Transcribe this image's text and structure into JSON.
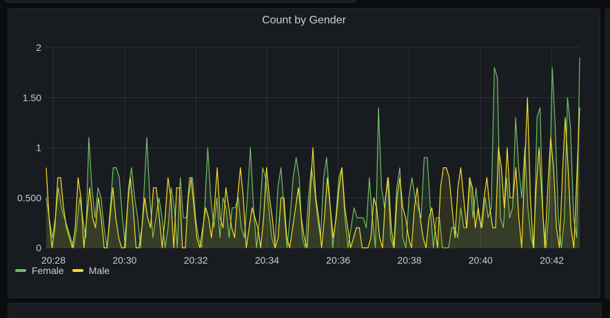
{
  "panel": {
    "title": "Count by Gender"
  },
  "legend": [
    {
      "label": "Female",
      "color": "#73bf69"
    },
    {
      "label": "Male",
      "color": "#fade2a"
    }
  ],
  "chart_data": {
    "type": "area",
    "title": "Count by Gender",
    "xlabel": "",
    "ylabel": "",
    "ylim": [
      0,
      2
    ],
    "y_ticks": [
      "0",
      "0.500",
      "1",
      "1.50",
      "2"
    ],
    "x_ticks": [
      "20:28",
      "20:30",
      "20:32",
      "20:34",
      "20:36",
      "20:38",
      "20:40",
      "20:42"
    ],
    "grid": true,
    "legend_position": "bottom-left",
    "x_start": "20:27:48",
    "x_interval_seconds": 5,
    "series": [
      {
        "name": "Female",
        "color": "#73bf69",
        "values": [
          0.5,
          0.3,
          0.1,
          0.3,
          0.6,
          0.4,
          0.3,
          0.2,
          0.1,
          0,
          0.2,
          0.5,
          0.3,
          0.1,
          1.1,
          0.6,
          0.3,
          0.6,
          0.5,
          0.2,
          0,
          0.4,
          0.8,
          0.8,
          0.7,
          0.3,
          0,
          0.6,
          0.8,
          0.5,
          0.3,
          0,
          0.5,
          1.1,
          0.5,
          0.1,
          0.3,
          0.5,
          0.3,
          0,
          0.2,
          0.6,
          0.4,
          0,
          0.7,
          0.3,
          0.3,
          0.7,
          0.7,
          0.3,
          0.1,
          0,
          0.4,
          1,
          0.5,
          0.2,
          0.5,
          0.1,
          0.5,
          0.4,
          0.1,
          0.4,
          0.4,
          0.5,
          0.2,
          0.1,
          0.5,
          1,
          0.4,
          0,
          0.3,
          0.8,
          0.7,
          0.4,
          0.1,
          0,
          0.6,
          0.8,
          0.4,
          0,
          0.3,
          0.7,
          0.9,
          0.7,
          0.1,
          0,
          0.5,
          0.8,
          0.6,
          0.3,
          0.1,
          0.7,
          0.9,
          0.5,
          0,
          0.3,
          0.7,
          0.8,
          0.3,
          0,
          0.2,
          0.4,
          0.3,
          0.3,
          0.3,
          0.2,
          0.7,
          0.3,
          0,
          1.4,
          0.6,
          0.4,
          0.7,
          0.1,
          0,
          0.6,
          0.8,
          0.1,
          0,
          0.5,
          0.7,
          0.5,
          0.4,
          0.3,
          0.9,
          0.9,
          0.4,
          0,
          0.3,
          0.3,
          0,
          0,
          0,
          0.2,
          0.2,
          0.1,
          0.4,
          0.2,
          0.2,
          0.7,
          0.3,
          0.6,
          0.3,
          0.2,
          0.5,
          0.3,
          0.4,
          1.8,
          1.7,
          0.3,
          0.2,
          0.7,
          0.3,
          0.4,
          1.3,
          0.8,
          0.5,
          1,
          0.4,
          0.1,
          0,
          1.3,
          1.4,
          0.3,
          0,
          0.4,
          1.8,
          1.2,
          0.3,
          0,
          0.3,
          1.5,
          1.2,
          0.3,
          0.1,
          1.9
        ],
        "fill_opacity": 0.1
      },
      {
        "name": "Male",
        "color": "#fade2a",
        "values": [
          0.8,
          0.3,
          0,
          0.2,
          0.7,
          0.7,
          0.4,
          0.2,
          0.1,
          0,
          0.2,
          0.7,
          0.5,
          0,
          0.3,
          0.6,
          0.3,
          0.2,
          0.5,
          0.3,
          0,
          0,
          0.3,
          0.6,
          0.3,
          0.1,
          0,
          0,
          0.4,
          0.7,
          0.4,
          0,
          0,
          0.2,
          0.5,
          0.3,
          0.2,
          0.6,
          0.6,
          0.3,
          0,
          0.3,
          0.7,
          0.5,
          0,
          0.6,
          0.6,
          0,
          0,
          0.5,
          0.7,
          0.4,
          0.1,
          0,
          0.2,
          0.4,
          0.3,
          0.1,
          0.4,
          0.8,
          0.3,
          0.2,
          0.6,
          0.4,
          0.2,
          0.1,
          0.5,
          0.8,
          0.5,
          0,
          0.2,
          0.4,
          0.3,
          0.2,
          0,
          0.3,
          0.8,
          0.5,
          0.3,
          0,
          0.1,
          0.5,
          0.5,
          0.1,
          0,
          0.2,
          0.4,
          0.6,
          0.3,
          0.1,
          0,
          0.5,
          1,
          0.5,
          0.3,
          0,
          0.3,
          0.7,
          0.4,
          0.1,
          0.3,
          0.6,
          0.8,
          0.4,
          0.2,
          0,
          0.1,
          0.2,
          0.2,
          0,
          0,
          0,
          0.1,
          0.5,
          0.4,
          0.1,
          0,
          0.5,
          0.7,
          0.2,
          0,
          0.5,
          0.7,
          0.4,
          0.3,
          0.1,
          0,
          0.4,
          0.6,
          0.3,
          0.1,
          0,
          0.3,
          0.4,
          0.2,
          0,
          0.6,
          0.8,
          0.8,
          0.7,
          0.4,
          0.1,
          0.6,
          0.8,
          0.5,
          0.2,
          0.7,
          0.6,
          0.2,
          0.4,
          0.2,
          0.5,
          0.7,
          0.4,
          0.2,
          0.2,
          1,
          0.8,
          0.4,
          1,
          0.5,
          0.5,
          0.8,
          0.3,
          0,
          0.8,
          1.5,
          0.5,
          0,
          0.6,
          1,
          0.5,
          0,
          0.6,
          1.1,
          0.8,
          0.2,
          0,
          0.7,
          1.3,
          0.8,
          0.2,
          0,
          0.7,
          1.4
        ]
      }
    ]
  }
}
